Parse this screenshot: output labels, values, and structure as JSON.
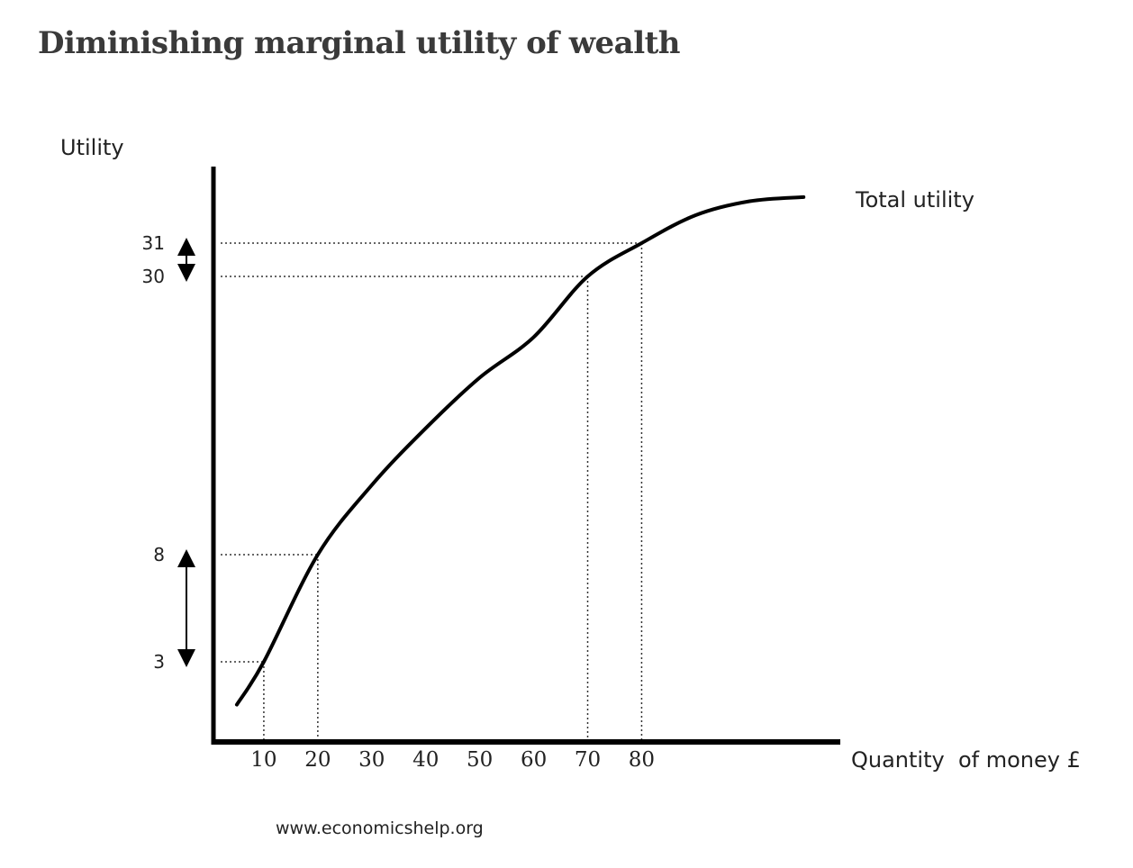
{
  "page": {
    "title": "Diminishing marginal utility of wealth",
    "source": "www.economicshelp.org"
  },
  "chart_data": {
    "type": "line",
    "title": "Diminishing marginal utility of wealth",
    "xlabel": "Quantity  of money £",
    "ylabel": "Utility",
    "x_ticks": [
      10,
      20,
      30,
      40,
      50,
      60,
      70,
      80
    ],
    "y_ticks": [
      3,
      8,
      30,
      31
    ],
    "series": [
      {
        "name": "Total utility",
        "x": [
          5,
          10,
          20,
          30,
          40,
          50,
          60,
          70,
          80,
          90,
          100,
          110
        ],
        "y": [
          1,
          3,
          8,
          13.5,
          18,
          22,
          25.2,
          30,
          31,
          33,
          34,
          34.3
        ]
      }
    ],
    "highlighted_points": [
      {
        "x": 10,
        "y": 3
      },
      {
        "x": 20,
        "y": 8
      },
      {
        "x": 70,
        "y": 30
      },
      {
        "x": 80,
        "y": 31
      }
    ],
    "grid": false,
    "legend": "label at end of curve",
    "colors": {
      "curve": "#000000",
      "axes": "#000000",
      "guides": "#333333"
    }
  }
}
